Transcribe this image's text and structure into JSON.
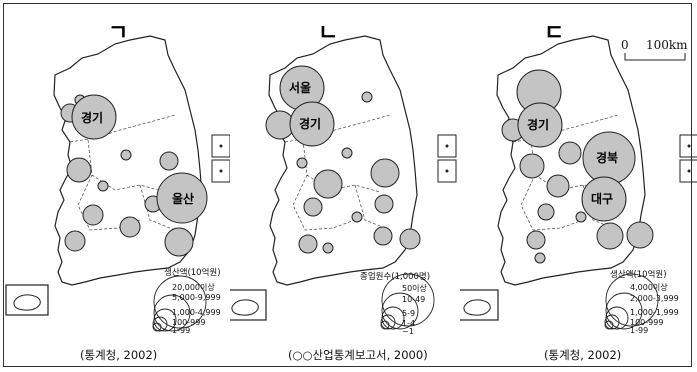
{
  "panels": [
    {
      "letter": "ㄱ",
      "source": "(통계청, 2002)",
      "legend_title": "생산액(10억원)",
      "legend_items": [
        "20,000이상",
        "5,000-9,999",
        "1,000-4,999",
        "100-999",
        "1-99"
      ],
      "bubble_labels": [
        "경기",
        "울산"
      ]
    },
    {
      "letter": "ㄴ",
      "source": "(○○산업통계보고서, 2000)",
      "legend_title": "종업원수(1,000명)",
      "legend_items": [
        "50이상",
        "10-49",
        "5-9",
        "1-4",
        "~1"
      ],
      "bubble_labels": [
        "서울",
        "경기"
      ]
    },
    {
      "letter": "ㄷ",
      "source": "(통계청, 2002)",
      "legend_title": "생산액(10억원)",
      "legend_items": [
        "4,000이상",
        "2,000-3,999",
        "1,000-1,999",
        "100-999",
        "1-99"
      ],
      "bubble_labels": [
        "경기",
        "경북",
        "대구"
      ]
    }
  ],
  "scale_bar": {
    "start": "0",
    "end": "100km"
  },
  "colors": {
    "bubble_fill": "#c4c4c4",
    "stroke": "#222222"
  }
}
